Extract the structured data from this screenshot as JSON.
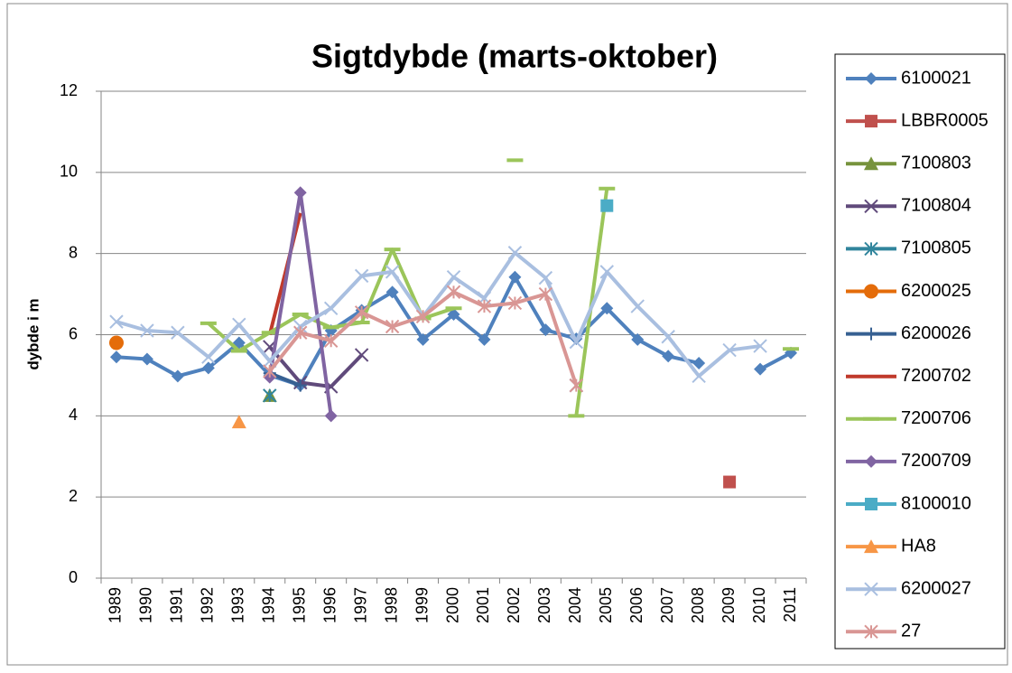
{
  "chart_data": {
    "type": "line",
    "title": "Sigtdybde (marts-oktober)",
    "y_label": "dybde i m",
    "categories": [
      "1989",
      "1990",
      "1991",
      "1992",
      "1993",
      "1994",
      "1995",
      "1996",
      "1997",
      "1998",
      "1999",
      "2000",
      "2001",
      "2002",
      "2003",
      "2004",
      "2005",
      "2006",
      "2007",
      "2008",
      "2009",
      "2010",
      "2011"
    ],
    "ylim": [
      0,
      12
    ],
    "yticks": [
      0,
      2,
      4,
      6,
      8,
      10,
      12
    ],
    "grid": true,
    "legend": "right",
    "series": [
      {
        "name": "6100021",
        "color": "#4f81bd",
        "marker": "diamond",
        "values": [
          5.45,
          5.4,
          4.98,
          5.18,
          5.8,
          5.0,
          4.75,
          6.1,
          6.6,
          7.05,
          5.88,
          6.5,
          5.88,
          7.42,
          6.12,
          5.9,
          6.65,
          5.88,
          5.47,
          5.3,
          null,
          5.15,
          5.55
        ]
      },
      {
        "name": "LBBR0005",
        "color": "#c0504d",
        "marker": "square",
        "values": [
          null,
          null,
          null,
          null,
          null,
          null,
          null,
          null,
          null,
          null,
          null,
          null,
          null,
          null,
          null,
          null,
          null,
          null,
          null,
          null,
          2.37,
          null,
          null
        ]
      },
      {
        "name": "7100803",
        "color": "#77933c",
        "marker": "triangle",
        "values": [
          null,
          null,
          null,
          null,
          null,
          4.5,
          null,
          null,
          null,
          null,
          null,
          null,
          null,
          null,
          null,
          null,
          null,
          null,
          null,
          null,
          null,
          null,
          null
        ]
      },
      {
        "name": "7100804",
        "color": "#604a7b",
        "marker": "x",
        "values": [
          null,
          null,
          null,
          null,
          null,
          5.7,
          4.82,
          4.72,
          5.5,
          null,
          null,
          null,
          null,
          null,
          null,
          4.75,
          null,
          null,
          null,
          null,
          null,
          null,
          null
        ]
      },
      {
        "name": "7100805",
        "color": "#31859c",
        "marker": "asterisk",
        "values": [
          null,
          null,
          null,
          null,
          null,
          4.5,
          null,
          null,
          null,
          null,
          null,
          null,
          null,
          null,
          null,
          null,
          null,
          null,
          null,
          null,
          null,
          null,
          null
        ]
      },
      {
        "name": "6200025",
        "color": "#e46c0a",
        "marker": "circle",
        "values": [
          5.8,
          null,
          null,
          null,
          null,
          null,
          null,
          null,
          null,
          null,
          null,
          null,
          null,
          null,
          null,
          null,
          null,
          null,
          null,
          null,
          null,
          null,
          null
        ]
      },
      {
        "name": "6200026",
        "color": "#376092",
        "marker": "plus",
        "values": [
          null,
          null,
          null,
          null,
          null,
          5.05,
          4.75,
          null,
          null,
          null,
          null,
          null,
          null,
          null,
          null,
          null,
          null,
          null,
          null,
          null,
          null,
          null,
          null
        ]
      },
      {
        "name": "7200702",
        "color": "#c0392b",
        "marker": "none",
        "values": [
          null,
          null,
          null,
          null,
          null,
          6.0,
          9.0,
          null,
          null,
          null,
          null,
          null,
          null,
          null,
          null,
          null,
          null,
          null,
          null,
          null,
          null,
          null,
          null
        ]
      },
      {
        "name": "7200706",
        "color": "#9bc55a",
        "marker": "dash",
        "values": [
          null,
          null,
          null,
          6.28,
          5.6,
          6.05,
          6.5,
          6.18,
          6.3,
          8.1,
          6.4,
          6.65,
          null,
          10.3,
          null,
          4.0,
          9.6,
          null,
          null,
          null,
          null,
          null,
          5.65
        ]
      },
      {
        "name": "7200709",
        "color": "#8064a2",
        "marker": "diamond",
        "values": [
          null,
          null,
          null,
          null,
          null,
          4.95,
          9.5,
          4.0,
          null,
          null,
          null,
          null,
          null,
          null,
          null,
          null,
          null,
          null,
          null,
          null,
          null,
          null,
          null
        ]
      },
      {
        "name": "8100010",
        "color": "#4bacc6",
        "marker": "square",
        "values": [
          null,
          null,
          null,
          null,
          null,
          null,
          null,
          null,
          null,
          null,
          null,
          null,
          null,
          null,
          null,
          null,
          9.18,
          null,
          null,
          null,
          null,
          null,
          null
        ]
      },
      {
        "name": "HA8",
        "color": "#f79646",
        "marker": "triangle",
        "values": [
          null,
          null,
          null,
          null,
          3.85,
          null,
          null,
          null,
          null,
          null,
          null,
          null,
          null,
          null,
          null,
          null,
          null,
          null,
          null,
          null,
          null,
          null,
          null
        ]
      },
      {
        "name": "6200027",
        "color": "#a9bfe0",
        "marker": "x",
        "values": [
          6.32,
          6.1,
          6.05,
          5.45,
          6.25,
          5.35,
          6.2,
          6.65,
          7.45,
          7.55,
          6.45,
          7.42,
          6.9,
          8.02,
          7.4,
          5.82,
          7.55,
          6.7,
          5.95,
          4.98,
          5.62,
          5.72,
          null
        ]
      },
      {
        "name": "27",
        "color": "#d99694",
        "marker": "asterisk",
        "values": [
          null,
          null,
          null,
          null,
          null,
          5.1,
          6.05,
          5.85,
          6.55,
          6.2,
          6.45,
          7.05,
          6.7,
          6.78,
          7.0,
          4.75,
          null,
          null,
          null,
          null,
          null,
          null,
          null
        ]
      }
    ]
  }
}
